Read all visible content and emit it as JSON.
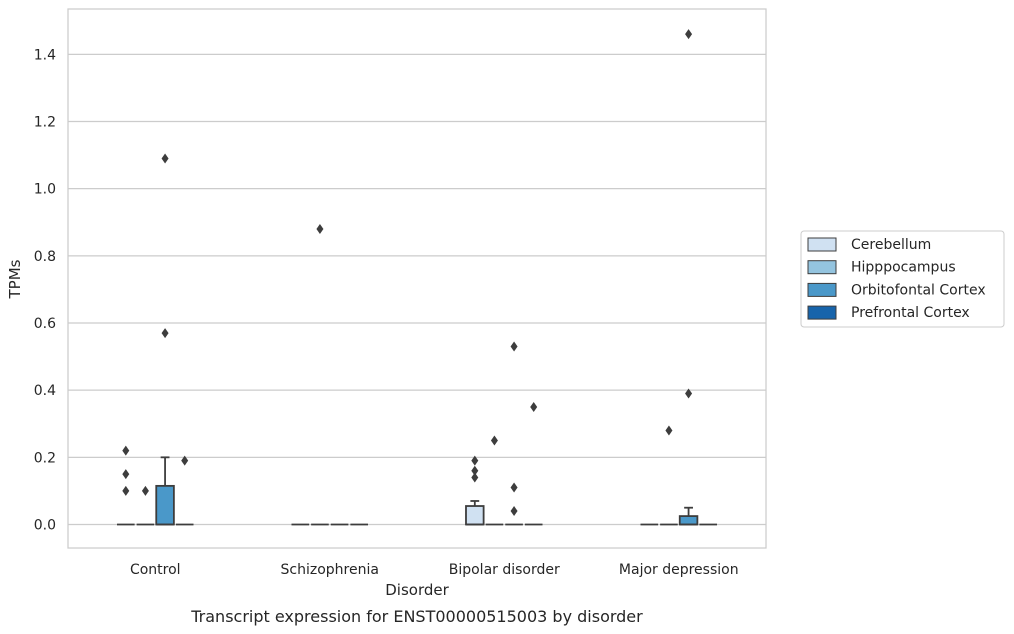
{
  "chart_data": {
    "type": "box",
    "caption": "Transcript expression for ENST00000515003 by disorder",
    "xlabel": "Disorder",
    "ylabel": "TPMs",
    "ylim": [
      -0.07,
      1.535
    ],
    "yticks": [
      0.0,
      0.2,
      0.4,
      0.6,
      0.8,
      1.0,
      1.2,
      1.4
    ],
    "ytick_labels": [
      "0.0",
      "0.2",
      "0.4",
      "0.6",
      "0.8",
      "1.0",
      "1.2",
      "1.4"
    ],
    "grid": true,
    "legend_position": "right",
    "categories": [
      "Control",
      "Schizophrenia",
      "Bipolar disorder",
      "Major depression"
    ],
    "series": [
      {
        "name": "Cerebellum",
        "color": "#d0e1f2",
        "boxes": [
          {
            "q1": 0,
            "median": 0,
            "q3": 0,
            "whisker_low": 0,
            "whisker_high": 0,
            "outliers": [
              0.22,
              0.15,
              0.1
            ]
          },
          {
            "q1": 0,
            "median": 0,
            "q3": 0,
            "whisker_low": 0,
            "whisker_high": 0,
            "outliers": []
          },
          {
            "q1": 0,
            "median": 0,
            "q3": 0.055,
            "whisker_low": 0,
            "whisker_high": 0.07,
            "outliers": [
              0.19,
              0.16,
              0.14
            ]
          },
          {
            "q1": 0,
            "median": 0,
            "q3": 0,
            "whisker_low": 0,
            "whisker_high": 0,
            "outliers": []
          }
        ]
      },
      {
        "name": "Hipppocampus",
        "color": "#94c4df",
        "boxes": [
          {
            "q1": 0,
            "median": 0,
            "q3": 0,
            "whisker_low": 0,
            "whisker_high": 0,
            "outliers": [
              0.1
            ]
          },
          {
            "q1": 0,
            "median": 0,
            "q3": 0,
            "whisker_low": 0,
            "whisker_high": 0,
            "outliers": [
              0.88
            ]
          },
          {
            "q1": 0,
            "median": 0,
            "q3": 0,
            "whisker_low": 0,
            "whisker_high": 0,
            "outliers": [
              0.25
            ]
          },
          {
            "q1": 0,
            "median": 0,
            "q3": 0,
            "whisker_low": 0,
            "whisker_high": 0,
            "outliers": [
              0.28
            ]
          }
        ]
      },
      {
        "name": "Orbitofontal Cortex",
        "color": "#4a98c9",
        "boxes": [
          {
            "q1": 0,
            "median": 0,
            "q3": 0.115,
            "whisker_low": 0,
            "whisker_high": 0.2,
            "outliers": [
              1.09,
              0.57
            ]
          },
          {
            "q1": 0,
            "median": 0,
            "q3": 0,
            "whisker_low": 0,
            "whisker_high": 0,
            "outliers": []
          },
          {
            "q1": 0,
            "median": 0,
            "q3": 0,
            "whisker_low": 0,
            "whisker_high": 0,
            "outliers": [
              0.53,
              0.11,
              0.04
            ]
          },
          {
            "q1": 0,
            "median": 0,
            "q3": 0.025,
            "whisker_low": 0,
            "whisker_high": 0.05,
            "outliers": [
              1.46,
              0.39
            ]
          }
        ]
      },
      {
        "name": "Prefrontal Cortex",
        "color": "#1764ab",
        "boxes": [
          {
            "q1": 0,
            "median": 0,
            "q3": 0,
            "whisker_low": 0,
            "whisker_high": 0,
            "outliers": [
              0.19
            ]
          },
          {
            "q1": 0,
            "median": 0,
            "q3": 0,
            "whisker_low": 0,
            "whisker_high": 0,
            "outliers": []
          },
          {
            "q1": 0,
            "median": 0,
            "q3": 0,
            "whisker_low": 0,
            "whisker_high": 0,
            "outliers": [
              0.35
            ]
          },
          {
            "q1": 0,
            "median": 0,
            "q3": 0,
            "whisker_low": 0,
            "whisker_high": 0,
            "outliers": []
          }
        ]
      }
    ]
  }
}
